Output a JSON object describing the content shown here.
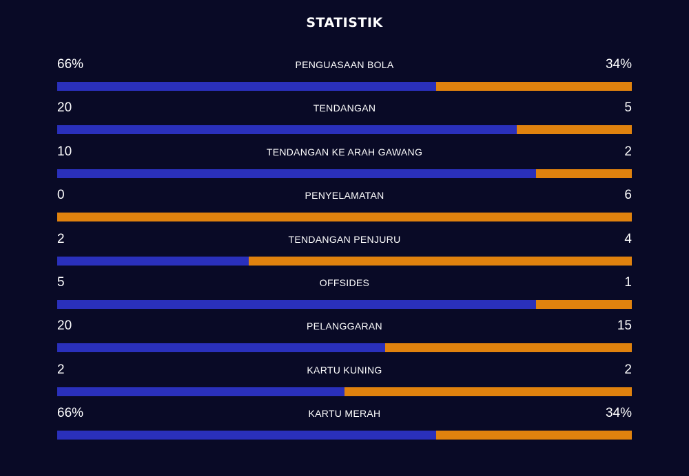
{
  "header": {
    "title": "STATISTIK"
  },
  "colors": {
    "home": "#2a30bb",
    "away": "#e0820e",
    "background": "#090a26"
  },
  "stats": [
    {
      "label": "PENGUASAAN BOLA",
      "left": "66%",
      "right": "34%",
      "home_share": 0.66
    },
    {
      "label": "TENDANGAN",
      "left": "20",
      "right": "5",
      "home_share": 0.8
    },
    {
      "label": "TENDANGAN KE ARAH GAWANG",
      "left": "10",
      "right": "2",
      "home_share": 0.833
    },
    {
      "label": "PENYELAMATAN",
      "left": "0",
      "right": "6",
      "home_share": 0
    },
    {
      "label": "TENDANGAN PENJURU",
      "left": "2",
      "right": "4",
      "home_share": 0.333
    },
    {
      "label": "OFFSIDES",
      "left": "5",
      "right": "1",
      "home_share": 0.833
    },
    {
      "label": "PELANGGARAN",
      "left": "20",
      "right": "15",
      "home_share": 0.571
    },
    {
      "label": "KARTU KUNING",
      "left": "2",
      "right": "2",
      "home_share": 0.5
    },
    {
      "label": "KARTU MERAH",
      "left": "66%",
      "right": "34%",
      "home_share": 0.66
    }
  ]
}
